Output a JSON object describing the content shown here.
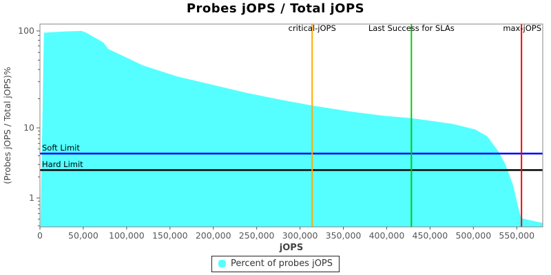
{
  "title": "Probes jOPS / Total jOPS",
  "legend": {
    "items": [
      {
        "label": "Percent of probes jOPS",
        "color": "#55FFFF"
      }
    ]
  },
  "chart_data": {
    "type": "area",
    "title": "Probes jOPS / Total jOPS",
    "xlabel": "jOPS",
    "ylabel": "(Probes jOPS / Total jOPS)%",
    "x_scale": "linear",
    "y_scale": "log",
    "xlim": [
      0,
      580000
    ],
    "ylim": [
      0.39,
      118
    ],
    "grid": false,
    "legend_position": "bottom-center",
    "x_ticks": [
      0,
      50000,
      100000,
      150000,
      200000,
      250000,
      300000,
      350000,
      400000,
      450000,
      500000,
      550000
    ],
    "y_ticks": [
      1,
      10,
      100
    ],
    "series": [
      {
        "name": "Percent of probes jOPS",
        "color": "#55FFFF",
        "points": [
          [
            600,
            0.4
          ],
          [
            4600,
            96
          ],
          [
            31000,
            99
          ],
          [
            48000,
            100
          ],
          [
            53500,
            96
          ],
          [
            73000,
            76
          ],
          [
            79000,
            65
          ],
          [
            100000,
            53
          ],
          [
            119000,
            44
          ],
          [
            158000,
            34
          ],
          [
            198000,
            28
          ],
          [
            238000,
            23
          ],
          [
            278000,
            19.5
          ],
          [
            314000,
            17
          ],
          [
            357000,
            14.8
          ],
          [
            397000,
            13.3
          ],
          [
            428000,
            12.6
          ],
          [
            476000,
            11
          ],
          [
            502000,
            9.5
          ],
          [
            516000,
            7.6
          ],
          [
            529000,
            4.6
          ],
          [
            537000,
            3.0
          ],
          [
            546000,
            1.5
          ],
          [
            551500,
            0.76
          ],
          [
            555000,
            0.52
          ],
          [
            560000,
            0.5
          ],
          [
            580000,
            0.44
          ]
        ]
      }
    ],
    "markers": {
      "vertical": [
        {
          "label": "critical-jOPS",
          "value": 314000,
          "color": "#FFAA00"
        },
        {
          "label": "Last Success for SLAs",
          "value": 428500,
          "color": "#00CC00"
        },
        {
          "label": "max-jOPS",
          "value": 555500,
          "color": "#FF0000"
        }
      ],
      "horizontal": [
        {
          "label": "Soft Limit",
          "value": 4.3,
          "color": "#0000FF"
        },
        {
          "label": "Hard Limit",
          "value": 2.5,
          "color": "#000000"
        }
      ]
    },
    "colors": {
      "plot_border": "#848484",
      "tick": "#555555",
      "tick_label": "#555555",
      "axis_label": "#444444",
      "marker_label": "#000000"
    }
  }
}
